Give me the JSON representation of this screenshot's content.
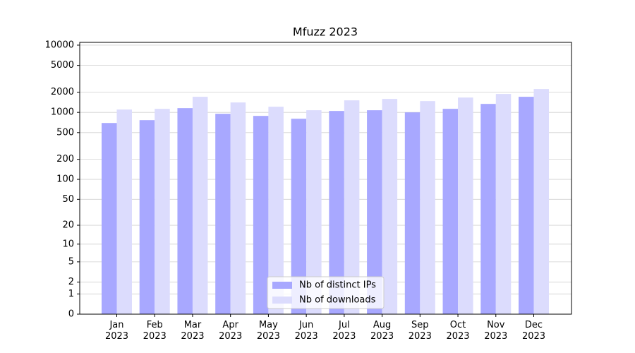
{
  "chart_data": {
    "type": "bar",
    "title": "Mfuzz 2023",
    "categories": [
      "Jan\n2023",
      "Feb\n2023",
      "Mar\n2023",
      "Apr\n2023",
      "May\n2023",
      "Jun\n2023",
      "Jul\n2023",
      "Aug\n2023",
      "Sep\n2023",
      "Oct\n2023",
      "Nov\n2023",
      "Dec\n2023"
    ],
    "series": [
      {
        "name": "Nb of distinct IPs",
        "color": "#a8a8ff",
        "values": [
          695,
          766,
          1157,
          953,
          886,
          804,
          1050,
          1076,
          1000,
          1129,
          1337,
          1706
        ]
      },
      {
        "name": "Nb of downloads",
        "color": "#dcdcfd",
        "values": [
          1102,
          1129,
          1706,
          1404,
          1213,
          1076,
          1510,
          1585,
          1472,
          1663,
          1879,
          2225
        ]
      }
    ],
    "yscale": "log1p",
    "ylim": [
      0,
      11000
    ],
    "yticks": [
      0,
      1,
      2,
      5,
      10,
      20,
      50,
      100,
      200,
      500,
      1000,
      2000,
      5000,
      10000
    ],
    "grid": true,
    "legend": "lower center"
  }
}
